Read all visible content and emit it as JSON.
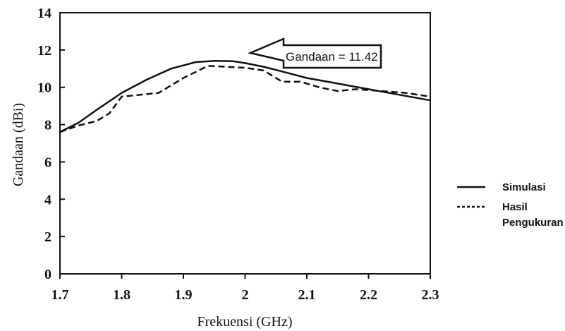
{
  "chart_data": {
    "type": "line",
    "xlabel": "Frekuensi (GHz)",
    "ylabel": "Gandaan (dBi)",
    "xlim": [
      1.7,
      2.3
    ],
    "ylim": [
      0,
      14
    ],
    "x_ticks": [
      "1.7",
      "1.8",
      "1.9",
      "2",
      "2.1",
      "2.2",
      "2.3"
    ],
    "y_ticks": [
      "0",
      "2",
      "4",
      "6",
      "8",
      "10",
      "12",
      "14"
    ],
    "grid": false,
    "legend_position": "right",
    "series": [
      {
        "name": "Simulasi",
        "style": "solid",
        "color": "#111111",
        "x": [
          1.7,
          1.73,
          1.76,
          1.8,
          1.84,
          1.88,
          1.92,
          1.95,
          1.98,
          2.0,
          2.03,
          2.06,
          2.1,
          2.15,
          2.2,
          2.25,
          2.3
        ],
        "y": [
          7.6,
          8.1,
          8.8,
          9.7,
          10.4,
          11.0,
          11.35,
          11.42,
          11.4,
          11.3,
          11.1,
          10.85,
          10.5,
          10.2,
          9.9,
          9.6,
          9.3
        ]
      },
      {
        "name": "Hasil Pengukuran",
        "style": "dashed",
        "color": "#111111",
        "x": [
          1.7,
          1.73,
          1.76,
          1.78,
          1.8,
          1.83,
          1.86,
          1.9,
          1.94,
          1.97,
          2.0,
          2.03,
          2.06,
          2.09,
          2.12,
          2.15,
          2.18,
          2.22,
          2.26,
          2.3
        ],
        "y": [
          7.6,
          7.95,
          8.2,
          8.6,
          9.5,
          9.6,
          9.7,
          10.5,
          11.15,
          11.1,
          11.05,
          10.9,
          10.3,
          10.3,
          10.0,
          9.8,
          9.9,
          9.8,
          9.7,
          9.5
        ]
      }
    ],
    "annotation": {
      "text": "Gandaan = 11.42",
      "points_to": {
        "x": 1.96,
        "y": 11.42
      }
    }
  }
}
